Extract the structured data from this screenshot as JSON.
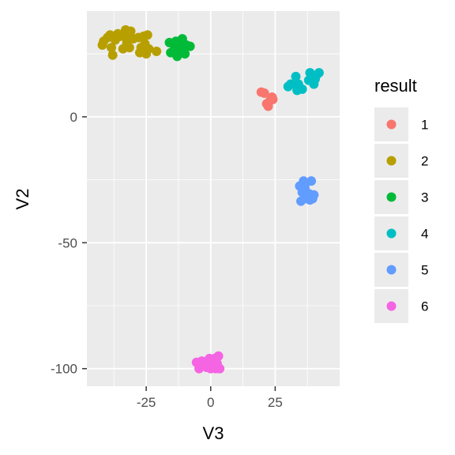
{
  "chart_data": {
    "type": "scatter",
    "xlabel": "V3",
    "ylabel": "V2",
    "xlim": [
      -48,
      50
    ],
    "ylim": [
      -107,
      42
    ],
    "x_ticks": [
      -25,
      0,
      25
    ],
    "y_ticks": [
      0,
      -50,
      -100
    ],
    "x_tick_labels": [
      "-25",
      "0",
      "25"
    ],
    "y_tick_labels": [
      "0",
      "-50",
      "-100"
    ],
    "grid": true,
    "legend": {
      "title": "result",
      "placement": "right"
    },
    "series": [
      {
        "name": "1",
        "color": "#F8766D",
        "points": [
          [
            19.6,
            9.8
          ],
          [
            20.8,
            9.4
          ],
          [
            21.7,
            5.2
          ],
          [
            22.3,
            4.2
          ],
          [
            23.0,
            6.4
          ],
          [
            23.8,
            7.8
          ],
          [
            24.1,
            6.9
          ]
        ]
      },
      {
        "name": "2",
        "color": "#B79F00",
        "points": [
          [
            -42,
            28.5
          ],
          [
            -41.5,
            30
          ],
          [
            -40,
            31.5
          ],
          [
            -39,
            32.5
          ],
          [
            -38.5,
            27.5
          ],
          [
            -38,
            24.5
          ],
          [
            -37,
            30.5
          ],
          [
            -36,
            33
          ],
          [
            -35,
            32
          ],
          [
            -34,
            27
          ],
          [
            -33,
            34.5
          ],
          [
            -32.5,
            29.5
          ],
          [
            -32,
            32.5
          ],
          [
            -31.5,
            27.5
          ],
          [
            -31,
            34
          ],
          [
            -30,
            31
          ],
          [
            -28,
            31.5
          ],
          [
            -27.5,
            25.5
          ],
          [
            -27,
            27.5
          ],
          [
            -26,
            32
          ],
          [
            -25.5,
            29
          ],
          [
            -25,
            25
          ],
          [
            -24.5,
            32.5
          ],
          [
            -24,
            27
          ],
          [
            -21,
            26
          ]
        ]
      },
      {
        "name": "3",
        "color": "#00BA38",
        "points": [
          [
            -16,
            29.5
          ],
          [
            -15.5,
            25.5
          ],
          [
            -14,
            28
          ],
          [
            -13.5,
            30
          ],
          [
            -13,
            24
          ],
          [
            -12.5,
            27
          ],
          [
            -12,
            28.5
          ],
          [
            -11,
            31
          ],
          [
            -10.5,
            26
          ],
          [
            -10,
            25
          ],
          [
            -9.5,
            28.5
          ],
          [
            -8,
            28
          ]
        ]
      },
      {
        "name": "4",
        "color": "#00BFC4",
        "points": [
          [
            30,
            12
          ],
          [
            31,
            13
          ],
          [
            33,
            16
          ],
          [
            33.5,
            10.5
          ],
          [
            34,
            13
          ],
          [
            34.5,
            11.5
          ],
          [
            35.5,
            11
          ],
          [
            38,
            14.5
          ],
          [
            38.5,
            17.5
          ],
          [
            39,
            15.5
          ],
          [
            40,
            13
          ],
          [
            40.5,
            15
          ],
          [
            41,
            16.5
          ],
          [
            42,
            17.5
          ]
        ]
      },
      {
        "name": "5",
        "color": "#619CFF",
        "points": [
          [
            34.5,
            -27.5
          ],
          [
            35,
            -33.5
          ],
          [
            35.5,
            -30
          ],
          [
            36,
            -25.5
          ],
          [
            36.5,
            -28
          ],
          [
            37,
            -31
          ],
          [
            37.5,
            -32.5
          ],
          [
            38,
            -30.5
          ],
          [
            38.5,
            -33
          ],
          [
            39,
            -25.5
          ],
          [
            39.5,
            -32.5
          ],
          [
            40,
            -31
          ]
        ]
      },
      {
        "name": "6",
        "color": "#F564E3",
        "points": [
          [
            -5.5,
            -97.5
          ],
          [
            -4.5,
            -100
          ],
          [
            -3.5,
            -97
          ],
          [
            -2,
            -97.5
          ],
          [
            -1.5,
            -99.5
          ],
          [
            -0.5,
            -96
          ],
          [
            0,
            -100
          ],
          [
            0.5,
            -97.5
          ],
          [
            1,
            -99
          ],
          [
            1.5,
            -96
          ],
          [
            2,
            -100
          ],
          [
            2.5,
            -98
          ],
          [
            3,
            -95
          ],
          [
            3.5,
            -100
          ]
        ]
      }
    ]
  }
}
